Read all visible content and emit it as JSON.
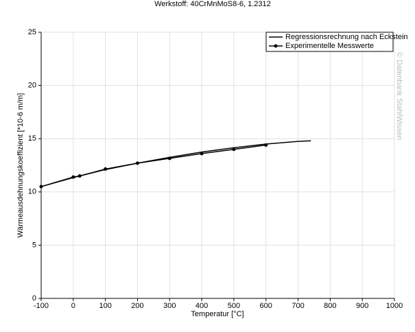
{
  "chart_data": {
    "type": "line",
    "title": "Werkstoff: 40CrMnMoS8-6, 1.2312",
    "x_label": "Temperatur [°C]",
    "y_label": "Wärmeausdehnungskoeffizient [*10-6 m/m]",
    "watermark": "© Datenbank StahlWissen",
    "xlim": [
      -100,
      1000
    ],
    "xticks": [
      -100,
      0,
      100,
      200,
      300,
      400,
      500,
      600,
      700,
      800,
      900,
      1000
    ],
    "ylim": [
      0,
      25
    ],
    "yticks": [
      0,
      5,
      10,
      15,
      20,
      25
    ],
    "grid": true,
    "legend": "top-right",
    "series": [
      {
        "name": "Regressionsrechnung nach Eckstein",
        "color": "#000000",
        "markers": false,
        "x": [
          -100,
          0,
          100,
          200,
          300,
          400,
          500,
          600,
          700,
          740
        ],
        "values": [
          10.5,
          11.35,
          12.1,
          12.7,
          13.25,
          13.75,
          14.15,
          14.5,
          14.75,
          14.8
        ]
      },
      {
        "name": "Experimentelle Messwerte",
        "color": "#000000",
        "markers": true,
        "x": [
          -100,
          0,
          20,
          100,
          200,
          300,
          400,
          500,
          600
        ],
        "values": [
          10.5,
          11.4,
          11.5,
          12.15,
          12.7,
          13.15,
          13.6,
          14.0,
          14.4
        ]
      }
    ]
  }
}
